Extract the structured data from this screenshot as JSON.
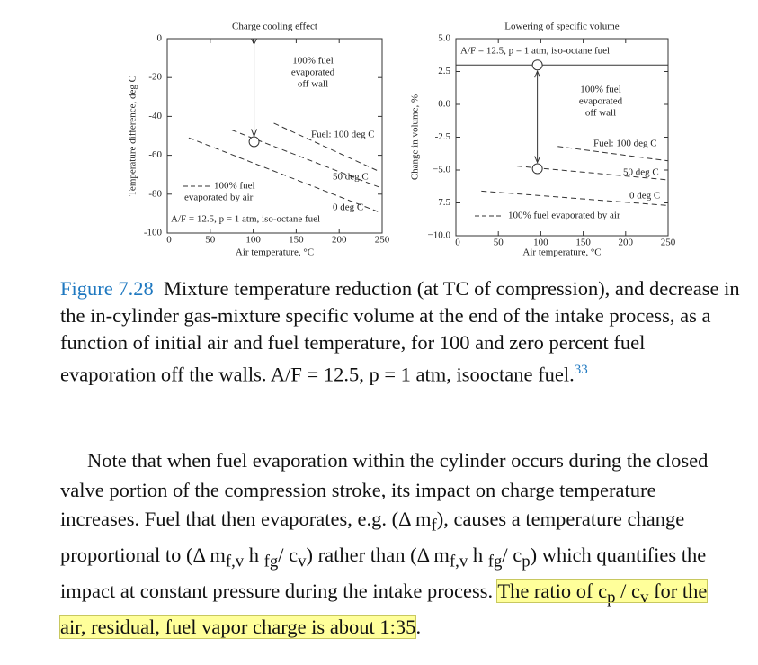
{
  "chart_data": [
    {
      "type": "line",
      "title": "Charge cooling effect",
      "ylabel": "Temperature difference, deg C",
      "xlabel": "Air temperature, °C",
      "xlim": [
        0,
        250
      ],
      "xticks": [
        0,
        50,
        100,
        150,
        200,
        250
      ],
      "ylim": [
        -100,
        0
      ],
      "yticks": [
        0,
        -20,
        -40,
        -60,
        -80,
        -100
      ],
      "series": [
        {
          "name": "Fuel: 100 deg C",
          "dash": true,
          "x": [
            124,
            245
          ],
          "values": [
            -43.5,
            -68
          ]
        },
        {
          "name": "50 deg C",
          "dash": true,
          "x": [
            75,
            250
          ],
          "values": [
            -47,
            -77
          ]
        },
        {
          "name": "0 deg C",
          "dash": true,
          "x": [
            25,
            245
          ],
          "values": [
            -51,
            -89
          ]
        }
      ],
      "markers": {
        "x": [
          101
        ],
        "values": [
          -53
        ]
      },
      "annotations": [
        "100% fuel",
        "evaporated",
        "off wall",
        "100% fuel",
        "evaporated by air",
        "A/F = 12.5, p = 1 atm, iso-octane fuel"
      ]
    },
    {
      "type": "line",
      "title": "Lowering of specific volume",
      "ylabel": "Change in volume, %",
      "xlabel": "Air temperature, °C",
      "xlim": [
        0,
        250
      ],
      "xticks": [
        0,
        50,
        100,
        150,
        200,
        250
      ],
      "ylim": [
        -10,
        5
      ],
      "yticks": [
        {
          "value": 5,
          "label": "5.0"
        },
        2.5,
        {
          "value": 0,
          "label": "0.0"
        },
        -2.5,
        {
          "value": -5,
          "label": "−5.0"
        },
        {
          "value": -7.5,
          "label": "−7.5"
        },
        {
          "value": -10,
          "label": "−10.0"
        }
      ],
      "series": [
        {
          "dash": false,
          "x": [
            0,
            250
          ],
          "values": [
            3.0,
            3.0
          ]
        },
        {
          "name": "Fuel: 100 deg C",
          "dash": true,
          "x": [
            120,
            250
          ],
          "values": [
            -3.2,
            -4.3
          ]
        },
        {
          "name": "50 deg C",
          "dash": true,
          "x": [
            72,
            250
          ],
          "values": [
            -4.7,
            -5.75
          ]
        },
        {
          "name": "0 deg C",
          "dash": true,
          "x": [
            30,
            250
          ],
          "values": [
            -6.6,
            -7.7
          ]
        }
      ],
      "markers": {
        "x": [
          96,
          96
        ],
        "values": [
          3.0,
          -4.9
        ]
      },
      "annotations": [
        "A/F = 12.5, p = 1 atm, iso-octane fuel",
        "100% fuel",
        "evaporated",
        "off wall",
        "100% fuel evaporated by air"
      ]
    }
  ],
  "caption": {
    "label": "Figure 7.28",
    "text": "Mixture temperature reduction (at TC of compression), and decrease in the in-cylinder gas-mixture specific volume at the end of the intake process, as a function of initial air and fuel temperature, for 100 and zero percent fuel evaporation off the walls. A/F = 12.5, p = 1 atm, isooctane fuel.",
    "ref": "33"
  },
  "body": {
    "runs": [
      "Note that when fuel evaporation within the cylinder occurs during the closed valve portion of the compression stroke, its impact on charge temperature increases. Fuel that then evaporates, e.g. (Δ m",
      "f",
      "), causes a temperature change proportional to (Δ m",
      "f,v",
      " h ",
      "fg",
      "/ c",
      "v",
      ") rather than (Δ m",
      "f,v",
      " h ",
      "fg",
      "/ c",
      "p",
      ") which quantifies the impact at constant pressure during the intake process. "
    ],
    "highlight": [
      "The ratio of c",
      "p",
      " / c",
      "v",
      " for the air, residual, fuel vapor charge is about 1:35"
    ],
    "end": "."
  }
}
